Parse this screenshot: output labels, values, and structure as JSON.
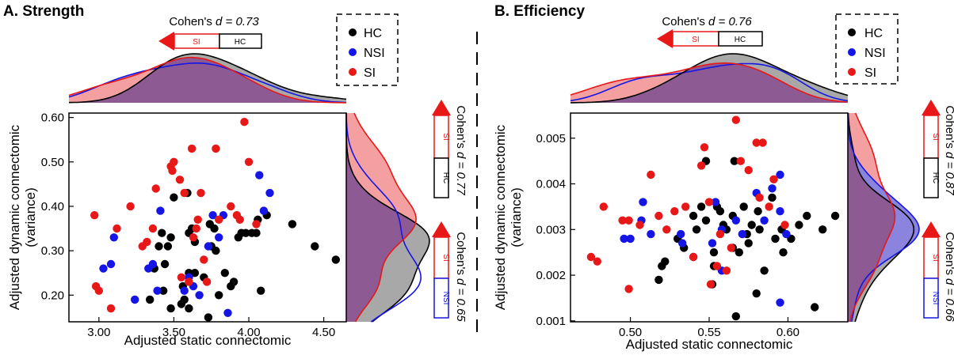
{
  "legend": {
    "hc": "HC",
    "nsi": "NSI",
    "si": "SI"
  },
  "colors": {
    "hc": "#000000",
    "nsi": "#1515e6",
    "si": "#e81818",
    "hc_fill": "#a8a8a8",
    "si_fill": "#f4a0a0",
    "overlap": "#8e5a93",
    "nsi_fill": "#8b84df"
  },
  "chart_data": [
    {
      "type": "scatter",
      "title": "A. Strength",
      "xlabel": "Adjusted static connectomic",
      "ylabel": [
        "Adjusted dynamic connectomic",
        "(variance)"
      ],
      "xlim": [
        2.8,
        4.65
      ],
      "ylim": [
        0.14,
        0.61
      ],
      "xticks": [
        "3.00",
        "3.50",
        "4.00",
        "4.50"
      ],
      "xtick_values": [
        3.0,
        3.5,
        4.0,
        4.5
      ],
      "yticks": [
        "0.20",
        "0.30",
        "0.40",
        "0.50",
        "0.60"
      ],
      "ytick_values": [
        0.2,
        0.3,
        0.4,
        0.5,
        0.6
      ],
      "top_effect": {
        "prefix": "Cohen's ",
        "d": "d",
        "value": " = 0.73",
        "low": "SI",
        "high": "HC"
      },
      "right_effects": [
        {
          "prefix": "Cohen's ",
          "d": "d",
          "value": " = 0.77",
          "low": "SI",
          "high": "HC"
        },
        {
          "prefix": "Cohen's ",
          "d": "d",
          "value": " = 0.65",
          "low": "SI",
          "high": "NSI"
        }
      ],
      "series": [
        {
          "name": "HC",
          "points": [
            [
              3.42,
              0.34
            ],
            [
              3.48,
              0.33
            ],
            [
              3.37,
              0.26
            ],
            [
              3.4,
              0.31
            ],
            [
              3.44,
              0.27
            ],
            [
              3.46,
              0.31
            ],
            [
              3.43,
              0.21
            ],
            [
              3.5,
              0.42
            ],
            [
              3.48,
              0.17
            ],
            [
              3.55,
              0.18
            ],
            [
              3.56,
              0.22
            ],
            [
              3.57,
              0.19
            ],
            [
              3.59,
              0.43
            ],
            [
              3.6,
              0.25
            ],
            [
              3.6,
              0.17
            ],
            [
              3.62,
              0.35
            ],
            [
              3.64,
              0.32
            ],
            [
              3.64,
              0.25
            ],
            [
              3.7,
              0.24
            ],
            [
              3.73,
              0.15
            ],
            [
              3.75,
              0.31
            ],
            [
              3.77,
              0.35
            ],
            [
              3.78,
              0.3
            ],
            [
              3.8,
              0.2
            ],
            [
              3.84,
              0.25
            ],
            [
              3.88,
              0.22
            ],
            [
              3.9,
              0.23
            ],
            [
              3.93,
              0.33
            ],
            [
              3.95,
              0.34
            ],
            [
              3.98,
              0.34
            ],
            [
              4.02,
              0.34
            ],
            [
              4.06,
              0.37
            ],
            [
              4.05,
              0.34
            ],
            [
              4.08,
              0.21
            ],
            [
              4.12,
              0.38
            ],
            [
              4.29,
              0.36
            ],
            [
              4.44,
              0.31
            ],
            [
              4.58,
              0.28
            ],
            [
              3.34,
              0.19
            ],
            [
              3.6,
              0.34
            ],
            [
              3.74,
              0.36
            ]
          ]
        },
        {
          "name": "NSI",
          "points": [
            [
              3.03,
              0.26
            ],
            [
              3.08,
              0.27
            ],
            [
              3.1,
              0.33
            ],
            [
              3.24,
              0.19
            ],
            [
              3.33,
              0.26
            ],
            [
              3.36,
              0.27
            ],
            [
              3.39,
              0.21
            ],
            [
              3.41,
              0.39
            ],
            [
              3.57,
              0.21
            ],
            [
              3.6,
              0.24
            ],
            [
              3.63,
              0.22
            ],
            [
              3.67,
              0.2
            ],
            [
              3.73,
              0.31
            ],
            [
              3.76,
              0.38
            ],
            [
              3.8,
              0.33
            ],
            [
              3.83,
              0.38
            ],
            [
              3.86,
              0.16
            ],
            [
              4.07,
              0.47
            ],
            [
              4.1,
              0.39
            ],
            [
              4.14,
              0.43
            ]
          ]
        },
        {
          "name": "SI",
          "points": [
            [
              2.97,
              0.38
            ],
            [
              2.98,
              0.22
            ],
            [
              3.0,
              0.21
            ],
            [
              3.08,
              0.17
            ],
            [
              3.12,
              0.35
            ],
            [
              3.21,
              0.4
            ],
            [
              3.29,
              0.31
            ],
            [
              3.32,
              0.32
            ],
            [
              3.36,
              0.35
            ],
            [
              3.38,
              0.44
            ],
            [
              3.48,
              0.49
            ],
            [
              3.49,
              0.48
            ],
            [
              3.5,
              0.5
            ],
            [
              3.54,
              0.46
            ],
            [
              3.57,
              0.43
            ],
            [
              3.6,
              0.23
            ],
            [
              3.62,
              0.53
            ],
            [
              3.63,
              0.33
            ],
            [
              3.65,
              0.35
            ],
            [
              3.66,
              0.37
            ],
            [
              3.68,
              0.43
            ],
            [
              3.7,
              0.28
            ],
            [
              3.72,
              0.23
            ],
            [
              3.78,
              0.53
            ],
            [
              3.8,
              0.37
            ],
            [
              3.88,
              0.4
            ],
            [
              3.92,
              0.38
            ],
            [
              3.94,
              0.37
            ],
            [
              3.97,
              0.59
            ],
            [
              4.0,
              0.5
            ],
            [
              4.05,
              0.36
            ],
            [
              3.55,
              0.24
            ]
          ]
        }
      ]
    },
    {
      "type": "scatter",
      "title": "B. Efficiency",
      "xlabel": "Adjusted static connectomic",
      "ylabel": [
        "Adjusted dynamic connectomic",
        "(variance)"
      ],
      "xlim": [
        0.462,
        0.638
      ],
      "ylim": [
        0.00098,
        0.00555
      ],
      "xticks": [
        "0.50",
        "0.55",
        "0.60"
      ],
      "xtick_values": [
        0.5,
        0.55,
        0.6
      ],
      "yticks": [
        "0.001",
        "0.002",
        "0.003",
        "0.004",
        "0.005"
      ],
      "ytick_values": [
        0.001,
        0.002,
        0.003,
        0.004,
        0.005
      ],
      "top_effect": {
        "prefix": "Cohen's ",
        "d": "d",
        "value": " = 0.76",
        "low": "SI",
        "high": "HC"
      },
      "right_effects": [
        {
          "prefix": "Cohen's ",
          "d": "d",
          "value": " = 0.87",
          "low": "SI",
          "high": "HC"
        },
        {
          "prefix": "Cohen's ",
          "d": "d",
          "value": " = 0.66",
          "low": "SI",
          "high": "NSI"
        }
      ],
      "series": [
        {
          "name": "HC",
          "points": [
            [
              0.518,
              0.0019
            ],
            [
              0.52,
              0.0022
            ],
            [
              0.522,
              0.0023
            ],
            [
              0.53,
              0.0028
            ],
            [
              0.534,
              0.0026
            ],
            [
              0.54,
              0.0033
            ],
            [
              0.542,
              0.003
            ],
            [
              0.545,
              0.0035
            ],
            [
              0.548,
              0.0032
            ],
            [
              0.548,
              0.0045
            ],
            [
              0.552,
              0.0018
            ],
            [
              0.553,
              0.0022
            ],
            [
              0.553,
              0.0025
            ],
            [
              0.557,
              0.0034
            ],
            [
              0.559,
              0.0031
            ],
            [
              0.561,
              0.003
            ],
            [
              0.565,
              0.0026
            ],
            [
              0.565,
              0.0033
            ],
            [
              0.566,
              0.0045
            ],
            [
              0.567,
              0.0011
            ],
            [
              0.569,
              0.0025
            ],
            [
              0.572,
              0.0035
            ],
            [
              0.574,
              0.0029
            ],
            [
              0.575,
              0.0027
            ],
            [
              0.577,
              0.0031
            ],
            [
              0.58,
              0.0016
            ],
            [
              0.581,
              0.0034
            ],
            [
              0.582,
              0.003
            ],
            [
              0.585,
              0.0021
            ],
            [
              0.59,
              0.0037
            ],
            [
              0.592,
              0.0028
            ],
            [
              0.596,
              0.003
            ],
            [
              0.597,
              0.0025
            ],
            [
              0.602,
              0.0028
            ],
            [
              0.607,
              0.0031
            ],
            [
              0.612,
              0.0033
            ],
            [
              0.617,
              0.0013
            ],
            [
              0.622,
              0.003
            ],
            [
              0.63,
              0.0033
            ],
            [
              0.555,
              0.0035
            ]
          ]
        },
        {
          "name": "NSI",
          "points": [
            [
              0.496,
              0.0028
            ],
            [
              0.5,
              0.0028
            ],
            [
              0.507,
              0.0032
            ],
            [
              0.508,
              0.0036
            ],
            [
              0.513,
              0.0029
            ],
            [
              0.532,
              0.0029
            ],
            [
              0.533,
              0.0027
            ],
            [
              0.54,
              0.0024
            ],
            [
              0.552,
              0.0027
            ],
            [
              0.558,
              0.003
            ],
            [
              0.558,
              0.0021
            ],
            [
              0.567,
              0.0032
            ],
            [
              0.571,
              0.0029
            ],
            [
              0.58,
              0.0038
            ],
            [
              0.585,
              0.0032
            ],
            [
              0.59,
              0.0039
            ],
            [
              0.595,
              0.0042
            ],
            [
              0.595,
              0.0014
            ],
            [
              0.595,
              0.0034
            ],
            [
              0.599,
              0.0029
            ],
            [
              0.554,
              0.0036
            ]
          ]
        },
        {
          "name": "SI",
          "points": [
            [
              0.475,
              0.0024
            ],
            [
              0.479,
              0.0023
            ],
            [
              0.483,
              0.0035
            ],
            [
              0.495,
              0.0032
            ],
            [
              0.499,
              0.0032
            ],
            [
              0.499,
              0.0017
            ],
            [
              0.506,
              0.0031
            ],
            [
              0.513,
              0.0042
            ],
            [
              0.518,
              0.0033
            ],
            [
              0.523,
              0.003
            ],
            [
              0.528,
              0.0034
            ],
            [
              0.535,
              0.0035
            ],
            [
              0.54,
              0.0024
            ],
            [
              0.545,
              0.0044
            ],
            [
              0.547,
              0.0048
            ],
            [
              0.55,
              0.0036
            ],
            [
              0.551,
              0.0018
            ],
            [
              0.555,
              0.0022
            ],
            [
              0.557,
              0.0029
            ],
            [
              0.561,
              0.0021
            ],
            [
              0.564,
              0.0026
            ],
            [
              0.567,
              0.0054
            ],
            [
              0.57,
              0.0045
            ],
            [
              0.575,
              0.0043
            ],
            [
              0.58,
              0.0049
            ],
            [
              0.582,
              0.0037
            ],
            [
              0.584,
              0.0049
            ],
            [
              0.588,
              0.0035
            ],
            [
              0.591,
              0.0041
            ],
            [
              0.598,
              0.0031
            ]
          ]
        }
      ]
    }
  ]
}
